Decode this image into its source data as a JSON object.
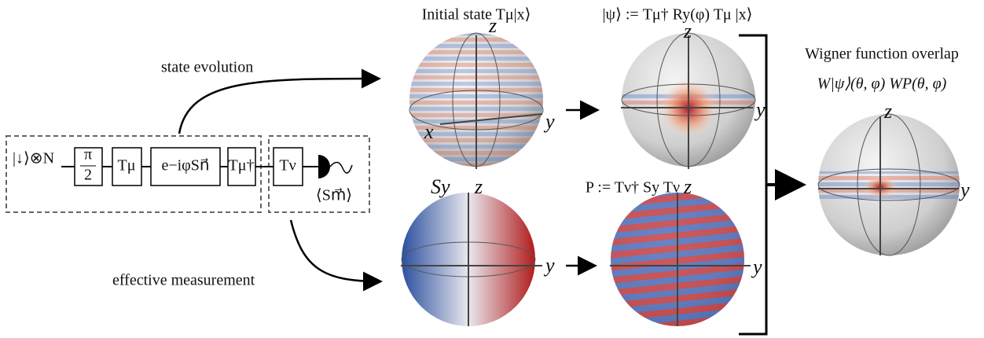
{
  "labels": {
    "state_evolution": "state evolution",
    "effective_measurement": "effective measurement",
    "wigner_title": "Wigner function overlap",
    "wigner_formula": "W|ψ⟩(θ, φ) WP(θ, φ)"
  },
  "circuit": {
    "input": "|↓⟩⊗N",
    "half_pi": {
      "num": "π",
      "den": "2"
    },
    "gates": [
      "Tμ",
      "e−iφSn⃗",
      "Tμ†",
      "Tν"
    ],
    "measurement": "⟨Sm⃗⟩"
  },
  "spheres": [
    {
      "title": "Initial state Tμ|x⟩",
      "axes": [
        "z",
        "y",
        "x"
      ]
    },
    {
      "title": "|ψ⟩ := Tμ† Ry(φ) Tμ |x⟩",
      "axes": [
        "z",
        "y"
      ]
    },
    {
      "title": "Sy",
      "axes": [
        "z",
        "y"
      ]
    },
    {
      "title": "P := Tν† Sy Tν",
      "axes": [
        "z",
        "y"
      ]
    },
    {
      "axes": [
        "z",
        "y"
      ]
    }
  ]
}
